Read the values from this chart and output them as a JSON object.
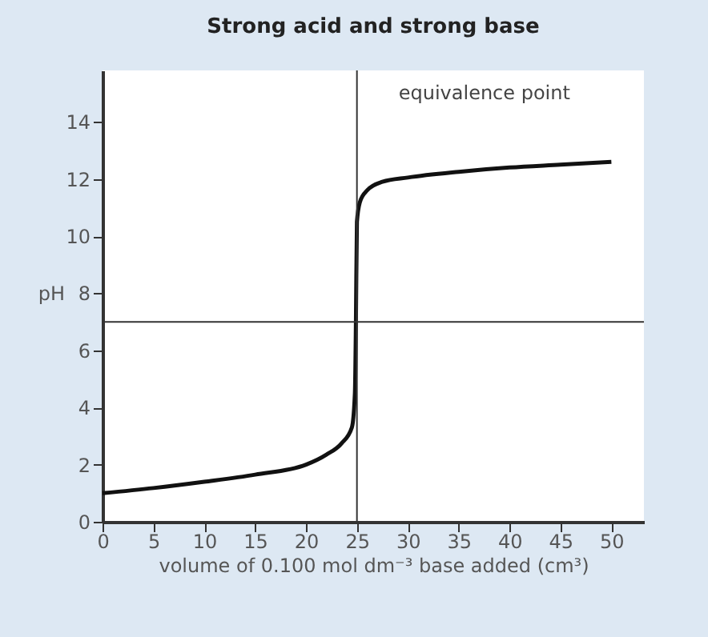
{
  "chart_data": {
    "type": "line",
    "title": "Strong acid and strong base",
    "xlabel": "volume of 0.100 mol dm⁻³ base added (cm³)",
    "ylabel": "pH",
    "series": [
      {
        "color": "#111111",
        "x": [
          0,
          5,
          10,
          15,
          20,
          22,
          23.5,
          24.5,
          24.8,
          24.9,
          25,
          25.3,
          26,
          27.5,
          30,
          35,
          40,
          45,
          50
        ],
        "values": [
          1.0,
          1.18,
          1.4,
          1.65,
          2.0,
          2.35,
          2.75,
          3.3,
          4.5,
          7,
          10.5,
          11.2,
          11.6,
          11.9,
          12.05,
          12.25,
          12.4,
          12.5,
          12.6
        ]
      }
    ],
    "xlim": [
      0,
      53.2
    ],
    "ylim": [
      0,
      15.8
    ],
    "xticks": [
      0,
      5,
      10,
      15,
      20,
      25,
      30,
      35,
      40,
      45,
      50
    ],
    "yticks": [
      0,
      2,
      4,
      6,
      8,
      10,
      12,
      14
    ],
    "ref_lines": [
      {
        "axis": "y",
        "value": 7,
        "color": "#333333"
      },
      {
        "axis": "x",
        "value": 25,
        "label": "equivalence point",
        "color": "#333333"
      }
    ],
    "grid": false
  }
}
